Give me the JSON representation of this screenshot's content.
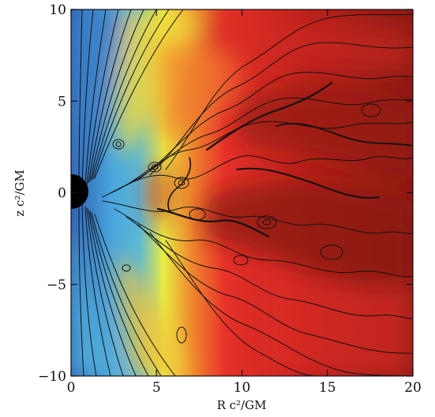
{
  "chart_data": {
    "type": "heatmap",
    "title": "",
    "xlabel": "R c²/GM",
    "ylabel": "z c²/GM",
    "xlim": [
      0,
      20
    ],
    "ylim": [
      -10,
      10
    ],
    "x_ticks": [
      "0",
      "5",
      "10",
      "15",
      "20"
    ],
    "y_ticks": [
      "−10",
      "−5",
      "0",
      "5",
      "10"
    ],
    "x_tick_values": [
      0,
      5,
      10,
      15,
      20
    ],
    "y_tick_values": [
      -10,
      -5,
      0,
      5,
      10
    ],
    "colormap": [
      "#2f5fb3",
      "#4aa6dc",
      "#e9ee45",
      "#f08b2e",
      "#e8322a",
      "#8c1a14"
    ],
    "central_object": {
      "shape": "half-disk",
      "center_R": 0,
      "center_z": 0,
      "radius": 0.9,
      "color": "#000000"
    },
    "field_lines": "black contour lines of magnetic field over the colored density map"
  }
}
